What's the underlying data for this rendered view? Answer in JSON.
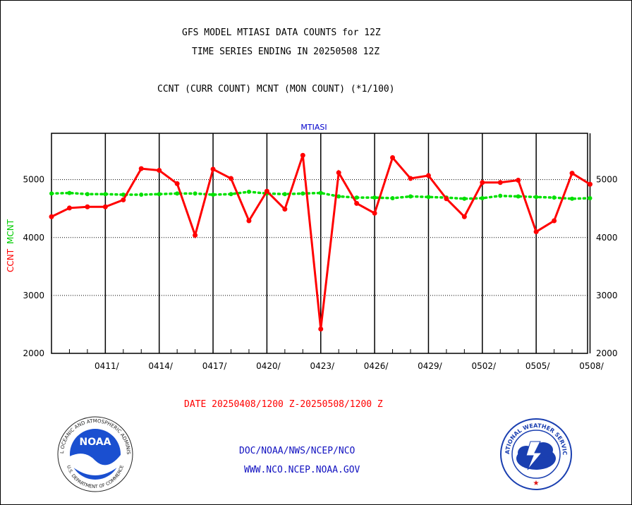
{
  "header": {
    "title_line1": "GFS MODEL MTIASI DATA COUNTS for 12Z",
    "title_line2": "TIME SERIES ENDING IN 20250508 12Z",
    "subtitle": "CCNT (CURR COUNT) MCNT (MON COUNT) (*1/100)"
  },
  "footer": {
    "date_range": "DATE 20250408/1200 Z-20250508/1200 Z",
    "link1": "DOC/NOAA/NWS/NCEP/NCO",
    "link2": "WWW.NCO.NCEP.NOAA.GOV"
  },
  "logos": {
    "noaa_text": "NOAA",
    "noaa_ring_top": "NATIONAL OCEANIC AND ATMOSPHERIC ADMINISTRATION",
    "noaa_ring_bottom": "U.S. DEPARTMENT OF COMMERCE",
    "nws_ring": "NATIONAL WEATHER SERVICE"
  },
  "chart_data": {
    "type": "line",
    "title": "MTIASI",
    "ylabel_parts": [
      {
        "text": "CCNT",
        "color": "#ff0000"
      },
      {
        "text": "MCNT",
        "color": "#00cc00"
      }
    ],
    "ylim": [
      2000,
      5800
    ],
    "yticks": [
      2000,
      3000,
      4000,
      5000
    ],
    "grid": true,
    "x": [
      "0408",
      "0409",
      "0410",
      "0411",
      "0412",
      "0413",
      "0414",
      "0415",
      "0416",
      "0417",
      "0418",
      "0419",
      "0420",
      "0421",
      "0422",
      "0423",
      "0424",
      "0425",
      "0426",
      "0427",
      "0428",
      "0429",
      "0430",
      "0501",
      "0502",
      "0503",
      "0504",
      "0505",
      "0506",
      "0507",
      "0508"
    ],
    "xticks": [
      "0411/",
      "0414/",
      "0417/",
      "0420/",
      "0423/",
      "0426/",
      "0429/",
      "0502/",
      "0505/",
      "0508/"
    ],
    "series": [
      {
        "name": "CCNT",
        "color": "#ff0000",
        "style": "solid",
        "values": [
          4360,
          4510,
          4530,
          4530,
          4650,
          5190,
          5160,
          4930,
          4040,
          5180,
          5020,
          4290,
          4800,
          4490,
          5420,
          2420,
          5120,
          4590,
          4420,
          5380,
          5020,
          5070,
          4670,
          4360,
          4950,
          4950,
          4990,
          4100,
          4290,
          5110,
          4920
        ]
      },
      {
        "name": "MCNT",
        "color": "#00e000",
        "style": "dotted",
        "values": [
          4760,
          4770,
          4750,
          4750,
          4740,
          4740,
          4750,
          4760,
          4760,
          4740,
          4750,
          4790,
          4760,
          4750,
          4760,
          4770,
          4710,
          4690,
          4690,
          4680,
          4710,
          4700,
          4690,
          4670,
          4680,
          4720,
          4710,
          4700,
          4690,
          4670,
          4680
        ]
      }
    ]
  }
}
